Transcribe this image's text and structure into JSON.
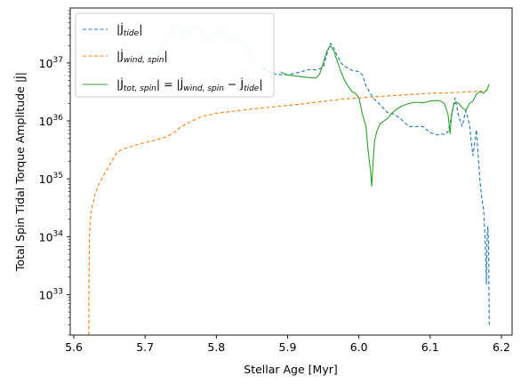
{
  "chart_data": {
    "type": "line",
    "xlabel": "Stellar Age [Myr]",
    "ylabel": "Total Spin Tidal Torque Amplitude |J̇|",
    "xlim": [
      5.595,
      6.215
    ],
    "ylim_log10": [
      32.3,
      37.95
    ],
    "xscale": "linear",
    "yscale": "log",
    "grid": false,
    "legend_position": "upper-left",
    "x_ticks": [
      {
        "value": 5.6,
        "label": "5.6"
      },
      {
        "value": 5.7,
        "label": "5.7"
      },
      {
        "value": 5.8,
        "label": "5.8"
      },
      {
        "value": 5.9,
        "label": "5.9"
      },
      {
        "value": 6.0,
        "label": "6.0"
      },
      {
        "value": 6.1,
        "label": "6.1"
      },
      {
        "value": 6.2,
        "label": "6.2"
      }
    ],
    "y_ticks": [
      {
        "exp": 33,
        "label": "10",
        "sup": "33"
      },
      {
        "exp": 34,
        "label": "10",
        "sup": "34"
      },
      {
        "exp": 35,
        "label": "10",
        "sup": "35"
      },
      {
        "exp": 36,
        "label": "10",
        "sup": "36"
      },
      {
        "exp": 37,
        "label": "10",
        "sup": "37"
      }
    ],
    "series": [
      {
        "name": "|J̇_tide|",
        "legend_main": "|J̇",
        "legend_sub": "tide",
        "legend_tail": "|",
        "color": "#1f77b4",
        "dash": "4,2.5",
        "x": [
          5.865,
          5.875,
          5.885,
          5.9,
          5.91,
          5.92,
          5.93,
          5.94,
          5.95,
          5.955,
          5.96,
          5.965,
          5.97,
          5.975,
          5.98,
          5.99,
          6.0,
          6.005,
          6.01,
          6.02,
          6.03,
          6.04,
          6.05,
          6.06,
          6.07,
          6.08,
          6.09,
          6.1,
          6.11,
          6.115,
          6.12,
          6.125,
          6.13,
          6.135,
          6.14,
          6.145,
          6.15,
          6.155,
          6.16,
          6.165,
          6.168,
          6.17,
          6.172,
          6.175,
          6.177,
          6.179,
          6.18,
          6.181,
          6.182,
          6.183
        ],
        "y": [
          8e+36,
          7e+36,
          6.3e+36,
          6.3e+36,
          6.6e+36,
          7.1e+36,
          7.7e+36,
          7.6e+36,
          8.5e+36,
          1.4e+37,
          2.2e+37,
          1.8e+37,
          1.3e+37,
          1e+37,
          8.8e+36,
          7.5e+36,
          7.1e+36,
          6.2e+36,
          4e+36,
          2.5e+36,
          1.9e+36,
          1.4e+36,
          1.3e+36,
          1.05e+36,
          8e+35,
          8e+35,
          8e+35,
          6.3e+35,
          5.7e+35,
          6e+35,
          5.8e+35,
          6.5e+35,
          1.2e+36,
          2.5e+36,
          1.2e+36,
          8e+35,
          1.5e+36,
          9e+35,
          2.5e+35,
          7e+35,
          2e+35,
          9e+34,
          5e+34,
          3e+34,
          1e+34,
          1.5e+33,
          1e+34,
          1.5e+34,
          8e+33,
          3e+32
        ]
      },
      {
        "name": "|J̇_wind,spin|",
        "legend_main": "|J̇",
        "legend_sub": "wind, spin",
        "legend_tail": "|",
        "color": "#ff7f0e",
        "dash": "4,2.5",
        "x": [
          5.621,
          5.6215,
          5.622,
          5.623,
          5.625,
          5.63,
          5.635,
          5.64,
          5.645,
          5.65,
          5.655,
          5.66,
          5.665,
          5.67,
          5.68,
          5.69,
          5.7,
          5.71,
          5.72,
          5.73,
          5.74,
          5.75,
          5.76,
          5.77,
          5.78,
          5.8,
          5.82,
          5.84,
          5.86,
          5.88,
          5.9,
          5.92,
          5.94,
          5.96,
          5.98,
          6.0,
          6.02,
          6.04,
          6.06,
          6.08,
          6.1,
          6.12,
          6.14,
          6.16,
          6.18
        ],
        "y": [
          2e+32,
          2e+33,
          1e+34,
          1.8e+34,
          3e+34,
          5.5e+34,
          8e+34,
          1.05e+35,
          1.35e+35,
          1.7e+35,
          2.2e+35,
          2.8e+35,
          3.1e+35,
          3.3e+35,
          3.6e+35,
          3.9e+35,
          4.2e+35,
          4.5e+35,
          4.9e+35,
          5.3e+35,
          6.2e+35,
          7.8e+35,
          9.2e+35,
          1.05e+36,
          1.2e+36,
          1.35e+36,
          1.45e+36,
          1.55e+36,
          1.65e+36,
          1.75e+36,
          1.85e+36,
          1.95e+36,
          2.1e+36,
          2.25e+36,
          2.4e+36,
          2.5e+36,
          2.6e+36,
          2.7e+36,
          2.8e+36,
          2.9e+36,
          3e+36,
          3.05e+36,
          3.1e+36,
          3.2e+36,
          3.3e+36
        ]
      },
      {
        "name": "|J̇_tot,spin| = |J̇_wind,spin − J̇_tide|",
        "legend_main": "|J̇",
        "legend_sub": "tot, spin",
        "legend_tail": "| = |J̇",
        "legend_sub2": "wind, spin",
        "legend_tail2": " − J̇",
        "legend_sub3": "tide",
        "legend_tail3": "|",
        "color": "#2ca02c",
        "dash": "",
        "x": [
          5.89,
          5.9,
          5.91,
          5.92,
          5.93,
          5.94,
          5.945,
          5.95,
          5.955,
          5.96,
          5.965,
          5.97,
          5.975,
          5.98,
          5.985,
          5.99,
          5.995,
          6.0,
          6.005,
          6.01,
          6.013,
          6.016,
          6.018,
          6.02,
          6.022,
          6.025,
          6.03,
          6.04,
          6.05,
          6.06,
          6.07,
          6.08,
          6.09,
          6.1,
          6.11,
          6.115,
          6.12,
          6.125,
          6.128,
          6.13,
          6.133,
          6.136,
          6.14,
          6.145,
          6.15,
          6.155,
          6.16,
          6.165,
          6.17,
          6.175,
          6.18,
          6.183
        ],
        "y": [
          7e+36,
          6.2e+36,
          6e+36,
          5.8e+36,
          5.6e+36,
          5.5e+36,
          6.5e+36,
          1e+37,
          1.6e+37,
          2e+37,
          1.6e+37,
          1.05e+37,
          7e+36,
          5e+36,
          4e+36,
          3.2e+36,
          3e+36,
          2.5e+36,
          1.3e+36,
          8e+35,
          3e+35,
          1.5e+35,
          7.5e+34,
          2e+35,
          4.5e+35,
          6.5e+35,
          9e+35,
          1.1e+36,
          1.5e+36,
          1.8e+36,
          2e+36,
          2.1e+36,
          2.05e+36,
          2.2e+36,
          2.25e+36,
          2.2e+36,
          2e+36,
          1.3e+36,
          6e+35,
          1.3e+36,
          1.9e+36,
          2.1e+36,
          2e+36,
          1.7e+36,
          1.5e+36,
          2e+36,
          2.2e+36,
          2.9e+36,
          3.2e+36,
          3e+36,
          3.5e+36,
          4.3e+36
        ]
      }
    ],
    "faint_trace": {
      "color": "#cfe8e4",
      "x": [
        5.67,
        5.68,
        5.69,
        5.7,
        5.71,
        5.72,
        5.73,
        5.74,
        5.745,
        5.75,
        5.755,
        5.76,
        5.765,
        5.77,
        5.775,
        5.78,
        5.785,
        5.79,
        5.795,
        5.8,
        5.805,
        5.81,
        5.815,
        5.82,
        5.83,
        5.84,
        5.85,
        5.86,
        5.865
      ],
      "y": [
        6e+36,
        9e+36,
        1.3e+37,
        1.5e+37,
        1.4e+37,
        1.6e+37,
        2.5e+37,
        4e+37,
        4.4e+37,
        3.5e+37,
        2.6e+37,
        2.9e+37,
        4e+37,
        4.5e+37,
        4e+37,
        3e+37,
        2.4e+37,
        2.3e+37,
        2.7e+37,
        3.6e+37,
        4.4e+37,
        3.7e+37,
        2.8e+37,
        2.5e+37,
        2.7e+37,
        2e+37,
        1.3e+37,
        9.5e+36,
        8e+36
      ]
    }
  }
}
